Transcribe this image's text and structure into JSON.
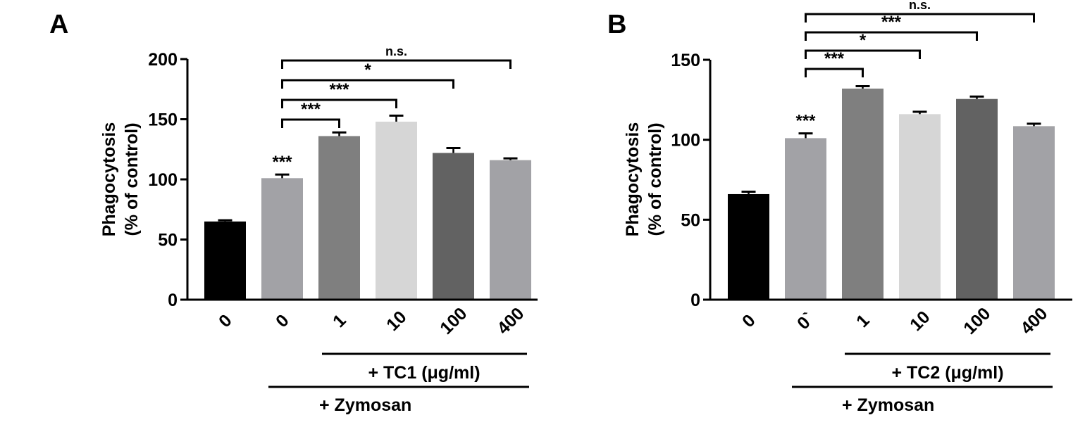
{
  "chart_data": [
    {
      "type": "bar",
      "panel_label": "A",
      "ylabel_lines": [
        "Phagocytosis",
        "(% of control)"
      ],
      "ylim": [
        0,
        200
      ],
      "yticks": [
        0,
        50,
        100,
        150,
        200
      ],
      "categories": [
        "0",
        "0",
        "1",
        "10",
        "100",
        "400"
      ],
      "values": [
        65,
        101,
        136,
        148,
        122,
        116
      ],
      "errors": [
        1,
        3,
        3,
        5,
        4,
        1.5
      ],
      "colors": [
        "#000000",
        "#a2a2a6",
        "#7f7f7f",
        "#d6d6d6",
        "#626262",
        "#a2a2a6"
      ],
      "bar_annotations": [
        {
          "index": 1,
          "text": "***"
        }
      ],
      "comparisons": [
        {
          "from": 1,
          "to": 2,
          "text": "***"
        },
        {
          "from": 1,
          "to": 3,
          "text": "***"
        },
        {
          "from": 1,
          "to": 4,
          "text": "*"
        },
        {
          "from": 1,
          "to": 5,
          "text": "n.s."
        }
      ],
      "treatment_label": "+ TC1 (μg/ml)",
      "zymosan_label": "+ Zymosan"
    },
    {
      "type": "bar",
      "panel_label": "B",
      "ylabel_lines": [
        "Phagocytosis",
        "(% of control)"
      ],
      "ylim": [
        0,
        150
      ],
      "yticks": [
        0,
        50,
        100,
        150
      ],
      "categories": [
        "0",
        "0`",
        "1",
        "10",
        "100",
        "400"
      ],
      "values": [
        66,
        101,
        132,
        116,
        125.5,
        108.5
      ],
      "errors": [
        1.5,
        3,
        1.5,
        1.5,
        1.5,
        1.5
      ],
      "colors": [
        "#000000",
        "#a2a2a6",
        "#7f7f7f",
        "#d6d6d6",
        "#626262",
        "#a2a2a6"
      ],
      "bar_annotations": [
        {
          "index": 1,
          "text": "***"
        }
      ],
      "comparisons": [
        {
          "from": 1,
          "to": 2,
          "text": "***"
        },
        {
          "from": 1,
          "to": 3,
          "text": "*"
        },
        {
          "from": 1,
          "to": 4,
          "text": "***"
        },
        {
          "from": 1,
          "to": 5,
          "text": "n.s."
        }
      ],
      "treatment_label": "+ TC2 (μg/ml)",
      "zymosan_label": "+ Zymosan"
    }
  ]
}
